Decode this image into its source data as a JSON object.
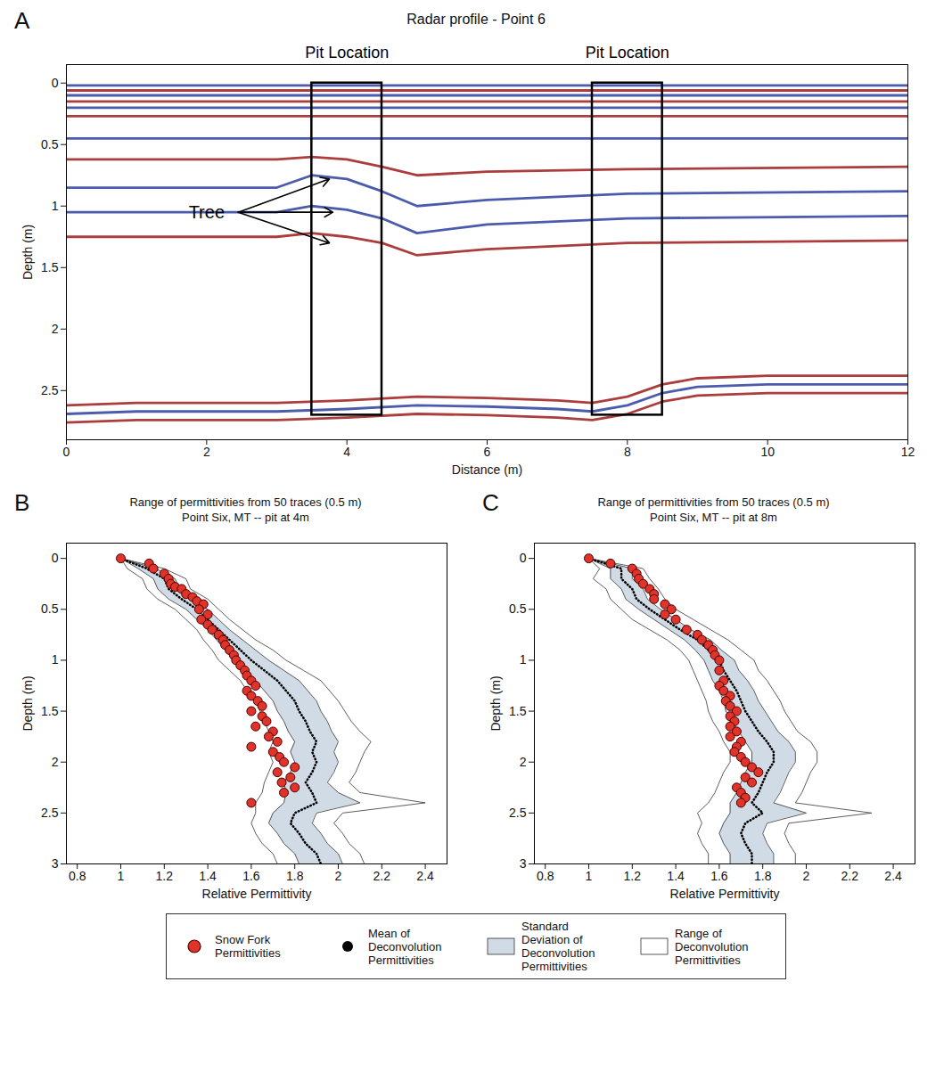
{
  "chart_data": [
    {
      "panel": "A",
      "type": "line",
      "title": "Radar profile - Point 6",
      "xlabel": "Distance (m)",
      "ylabel": "Depth (m)",
      "xlim": [
        0,
        12
      ],
      "xticks": [
        0,
        2,
        4,
        6,
        8,
        10,
        12
      ],
      "ylim": [
        -0.15,
        2.9
      ],
      "yticks": [
        0,
        0.5,
        1,
        1.5,
        2,
        2.5
      ],
      "series": [
        {
          "type": "line",
          "color": "#2b3f9e",
          "x": [
            0,
            12
          ],
          "depth": [
            0.02,
            0.02
          ]
        },
        {
          "type": "line",
          "color": "#9e1b1b",
          "x": [
            0,
            12
          ],
          "depth": [
            0.06,
            0.06
          ]
        },
        {
          "type": "line",
          "color": "#2b3f9e",
          "x": [
            0,
            12
          ],
          "depth": [
            0.1,
            0.1
          ]
        },
        {
          "type": "line",
          "color": "#9e1b1b",
          "x": [
            0,
            12
          ],
          "depth": [
            0.15,
            0.15
          ]
        },
        {
          "type": "line",
          "color": "#2b3f9e",
          "x": [
            0,
            12
          ],
          "depth": [
            0.2,
            0.2
          ]
        },
        {
          "type": "line",
          "color": "#9e1b1b",
          "x": [
            0,
            12
          ],
          "depth": [
            0.27,
            0.27
          ]
        },
        {
          "type": "line",
          "color": "#2b3f9e",
          "x": [
            0,
            12
          ],
          "depth": [
            0.45,
            0.45
          ]
        },
        {
          "type": "line",
          "color": "#9e1b1b",
          "x": [
            0,
            3,
            3.5,
            4,
            4.5,
            5,
            6,
            8,
            12
          ],
          "depth": [
            0.62,
            0.62,
            0.6,
            0.62,
            0.68,
            0.75,
            0.72,
            0.7,
            0.68
          ]
        },
        {
          "type": "line",
          "color": "#2b3f9e",
          "x": [
            0,
            3,
            3.5,
            4,
            4.5,
            5,
            6,
            8,
            12
          ],
          "depth": [
            0.85,
            0.85,
            0.75,
            0.78,
            0.88,
            1.0,
            0.95,
            0.9,
            0.88
          ]
        },
        {
          "type": "line",
          "color": "#2b3f9e",
          "x": [
            0,
            3,
            3.5,
            4,
            4.5,
            5,
            6,
            8,
            12
          ],
          "depth": [
            1.05,
            1.05,
            1.0,
            1.03,
            1.1,
            1.22,
            1.15,
            1.1,
            1.08
          ]
        },
        {
          "type": "line",
          "color": "#9e1b1b",
          "x": [
            0,
            3,
            3.5,
            4,
            4.5,
            5,
            6,
            8,
            12
          ],
          "depth": [
            1.25,
            1.25,
            1.22,
            1.25,
            1.3,
            1.4,
            1.35,
            1.3,
            1.28
          ]
        },
        {
          "type": "line",
          "color": "#9e1b1b",
          "x": [
            0,
            1,
            2,
            3,
            4,
            5,
            6,
            7,
            7.5,
            8,
            8.5,
            9,
            10,
            11,
            12
          ],
          "depth": [
            2.62,
            2.6,
            2.6,
            2.6,
            2.58,
            2.55,
            2.56,
            2.58,
            2.6,
            2.55,
            2.45,
            2.4,
            2.38,
            2.38,
            2.38
          ]
        },
        {
          "type": "line",
          "color": "#2b3f9e",
          "x": [
            0,
            1,
            2,
            3,
            4,
            5,
            6,
            7,
            7.5,
            8,
            8.5,
            9,
            10,
            11,
            12
          ],
          "depth": [
            2.69,
            2.67,
            2.67,
            2.67,
            2.65,
            2.62,
            2.63,
            2.65,
            2.67,
            2.62,
            2.52,
            2.47,
            2.45,
            2.45,
            2.45
          ]
        },
        {
          "type": "line",
          "color": "#9e1b1b",
          "x": [
            0,
            1,
            2,
            3,
            4,
            5,
            6,
            7,
            7.5,
            8,
            8.5,
            9,
            10,
            11,
            12
          ],
          "depth": [
            2.76,
            2.74,
            2.74,
            2.74,
            2.72,
            2.69,
            2.7,
            2.72,
            2.74,
            2.69,
            2.59,
            2.54,
            2.52,
            2.52,
            2.52
          ]
        }
      ],
      "boxes": [
        {
          "label": "Pit Location",
          "x": [
            3.5,
            4.5
          ],
          "depth": [
            0,
            2.7
          ]
        },
        {
          "label": "Pit Location",
          "x": [
            7.5,
            8.5
          ],
          "depth": [
            0,
            2.7
          ]
        }
      ],
      "arrows": {
        "label": "Tree",
        "x": 2.0,
        "depth": 1.05,
        "from": [
          2.45,
          1.05
        ],
        "targets": [
          [
            3.75,
            0.78
          ],
          [
            3.8,
            1.05
          ],
          [
            3.75,
            1.3
          ]
        ]
      }
    },
    {
      "panel": "B",
      "type": "line",
      "title": "Range of permittivities from 50 traces (0.5 m)",
      "subtitle": "Point Six, MT -- pit at 4m",
      "xlabel": "Relative Permittivity",
      "ylabel": "Depth (m)",
      "xlim": [
        0.75,
        2.5
      ],
      "xticks": [
        0.8,
        1,
        1.2,
        1.4,
        1.6,
        1.8,
        2,
        2.2,
        2.4
      ],
      "ylim": [
        -0.15,
        3
      ],
      "yticks": [
        0,
        0.5,
        1,
        1.5,
        2,
        2.5,
        3
      ],
      "legend": "bottom",
      "depth": [
        0,
        0.1,
        0.2,
        0.3,
        0.4,
        0.5,
        0.6,
        0.7,
        0.8,
        0.9,
        1.0,
        1.1,
        1.2,
        1.3,
        1.4,
        1.5,
        1.6,
        1.7,
        1.8,
        1.9,
        2.0,
        2.1,
        2.2,
        2.3,
        2.4,
        2.5,
        2.6,
        2.7,
        2.8,
        2.9,
        3.0
      ],
      "series": [
        {
          "name": "Range of Deconvolution Permittivities",
          "type": "area",
          "color": "#ffffff",
          "lower": [
            1.0,
            1.03,
            1.1,
            1.12,
            1.17,
            1.25,
            1.3,
            1.35,
            1.38,
            1.42,
            1.45,
            1.5,
            1.55,
            1.58,
            1.62,
            1.64,
            1.66,
            1.68,
            1.7,
            1.68,
            1.7,
            1.68,
            1.66,
            1.65,
            1.62,
            1.62,
            1.6,
            1.62,
            1.65,
            1.7,
            1.72
          ],
          "upper": [
            1.0,
            1.2,
            1.3,
            1.32,
            1.4,
            1.45,
            1.5,
            1.56,
            1.62,
            1.7,
            1.76,
            1.84,
            1.92,
            1.96,
            2.0,
            2.03,
            2.06,
            2.1,
            2.15,
            2.12,
            2.1,
            2.08,
            2.05,
            2.1,
            2.4,
            2.02,
            1.98,
            2.02,
            2.05,
            2.1,
            2.12
          ]
        },
        {
          "name": "Standard Deviation of Deconvolution Permittivities",
          "type": "area",
          "color": "#d0dbe5",
          "lower": [
            1.0,
            1.08,
            1.15,
            1.17,
            1.22,
            1.3,
            1.35,
            1.4,
            1.44,
            1.48,
            1.52,
            1.57,
            1.62,
            1.66,
            1.7,
            1.72,
            1.75,
            1.77,
            1.8,
            1.78,
            1.8,
            1.78,
            1.75,
            1.76,
            1.75,
            1.7,
            1.68,
            1.72,
            1.75,
            1.8,
            1.82
          ],
          "upper": [
            1.0,
            1.16,
            1.25,
            1.27,
            1.34,
            1.4,
            1.45,
            1.5,
            1.56,
            1.62,
            1.68,
            1.75,
            1.82,
            1.86,
            1.9,
            1.92,
            1.95,
            1.97,
            2.0,
            1.98,
            2.0,
            1.98,
            1.95,
            2.0,
            2.1,
            1.9,
            1.88,
            1.92,
            1.95,
            2.0,
            2.02
          ]
        },
        {
          "name": "Mean of Deconvolution Permittivities",
          "type": "line",
          "line_style": "dotted",
          "color": "#000000",
          "values": [
            1.0,
            1.12,
            1.2,
            1.22,
            1.28,
            1.35,
            1.4,
            1.45,
            1.5,
            1.55,
            1.6,
            1.66,
            1.72,
            1.76,
            1.8,
            1.82,
            1.85,
            1.87,
            1.9,
            1.88,
            1.9,
            1.88,
            1.85,
            1.88,
            1.9,
            1.8,
            1.78,
            1.82,
            1.85,
            1.9,
            1.92
          ]
        },
        {
          "name": "Snow Fork Permittivities",
          "type": "scatter",
          "marker": "circle",
          "color": "#e0342b",
          "values": [
            1.0,
            1.13,
            1.15,
            1.2,
            1.22,
            1.23,
            1.25,
            1.28,
            1.3,
            1.33,
            1.35,
            1.38,
            1.36,
            1.4,
            1.37,
            1.4,
            1.42,
            1.45,
            1.47,
            1.48,
            1.5,
            1.52,
            1.53,
            1.55,
            1.57,
            1.58,
            1.6,
            1.62,
            1.58,
            1.6,
            1.63,
            1.65,
            1.6,
            1.65,
            1.67,
            1.62,
            1.7,
            1.68,
            1.72,
            1.6,
            1.7,
            1.73,
            1.75,
            1.8,
            1.72,
            1.78,
            1.74,
            1.8,
            1.75,
            1.6
          ],
          "depth": [
            0,
            0.05,
            0.1,
            0.15,
            0.2,
            0.25,
            0.28,
            0.3,
            0.35,
            0.38,
            0.42,
            0.45,
            0.5,
            0.55,
            0.6,
            0.65,
            0.7,
            0.75,
            0.8,
            0.85,
            0.9,
            0.95,
            1.0,
            1.05,
            1.1,
            1.15,
            1.2,
            1.25,
            1.3,
            1.35,
            1.4,
            1.45,
            1.5,
            1.55,
            1.6,
            1.65,
            1.7,
            1.75,
            1.8,
            1.85,
            1.9,
            1.95,
            2.0,
            2.05,
            2.1,
            2.15,
            2.2,
            2.25,
            2.3,
            2.4
          ]
        }
      ]
    },
    {
      "panel": "C",
      "type": "line",
      "title": "Range of permittivities from 50 traces (0.5 m)",
      "subtitle": "Point Six, MT -- pit at 8m",
      "xlabel": "Relative Permittivity",
      "ylabel": "Depth (m)",
      "xlim": [
        0.75,
        2.5
      ],
      "xticks": [
        0.8,
        1,
        1.2,
        1.4,
        1.6,
        1.8,
        2,
        2.2,
        2.4
      ],
      "ylim": [
        -0.15,
        3
      ],
      "yticks": [
        0,
        0.5,
        1,
        1.5,
        2,
        2.5,
        3
      ],
      "legend": "bottom",
      "depth": [
        0,
        0.1,
        0.2,
        0.3,
        0.4,
        0.5,
        0.6,
        0.7,
        0.8,
        0.9,
        1.0,
        1.1,
        1.2,
        1.3,
        1.4,
        1.5,
        1.6,
        1.7,
        1.8,
        1.9,
        2.0,
        2.1,
        2.2,
        2.3,
        2.4,
        2.5,
        2.6,
        2.7,
        2.8,
        2.9,
        3.0
      ],
      "series": [
        {
          "name": "Range of Deconvolution Permittivities",
          "type": "area",
          "color": "#ffffff",
          "lower": [
            1.0,
            1.05,
            1.02,
            1.08,
            1.1,
            1.15,
            1.2,
            1.28,
            1.36,
            1.42,
            1.46,
            1.48,
            1.5,
            1.52,
            1.54,
            1.55,
            1.57,
            1.6,
            1.62,
            1.65,
            1.65,
            1.62,
            1.6,
            1.58,
            1.55,
            1.5,
            1.52,
            1.5,
            1.52,
            1.55,
            1.55
          ],
          "upper": [
            1.0,
            1.25,
            1.28,
            1.32,
            1.35,
            1.4,
            1.48,
            1.56,
            1.64,
            1.7,
            1.76,
            1.78,
            1.82,
            1.85,
            1.88,
            1.9,
            1.93,
            1.96,
            2.02,
            2.05,
            2.05,
            2.02,
            2.0,
            1.98,
            1.95,
            2.3,
            1.92,
            1.9,
            1.92,
            1.95,
            1.95
          ]
        },
        {
          "name": "Standard Deviation of Deconvolution Permittivities",
          "type": "area",
          "color": "#d0dbe5",
          "lower": [
            1.0,
            1.1,
            1.1,
            1.15,
            1.17,
            1.23,
            1.3,
            1.37,
            1.44,
            1.49,
            1.53,
            1.55,
            1.57,
            1.6,
            1.62,
            1.63,
            1.66,
            1.69,
            1.72,
            1.75,
            1.75,
            1.72,
            1.7,
            1.68,
            1.65,
            1.65,
            1.62,
            1.6,
            1.62,
            1.65,
            1.65
          ],
          "upper": [
            1.0,
            1.2,
            1.2,
            1.25,
            1.27,
            1.33,
            1.4,
            1.47,
            1.56,
            1.61,
            1.67,
            1.69,
            1.73,
            1.76,
            1.78,
            1.81,
            1.84,
            1.87,
            1.92,
            1.95,
            1.95,
            1.92,
            1.9,
            1.88,
            1.85,
            2.0,
            1.82,
            1.8,
            1.82,
            1.85,
            1.85
          ]
        },
        {
          "name": "Mean of Deconvolution Permittivities",
          "type": "line",
          "line_style": "dotted",
          "color": "#000000",
          "values": [
            1.0,
            1.15,
            1.15,
            1.2,
            1.22,
            1.28,
            1.35,
            1.42,
            1.5,
            1.55,
            1.6,
            1.62,
            1.65,
            1.68,
            1.7,
            1.72,
            1.75,
            1.78,
            1.82,
            1.85,
            1.85,
            1.82,
            1.8,
            1.78,
            1.75,
            1.8,
            1.72,
            1.7,
            1.72,
            1.75,
            1.75
          ]
        },
        {
          "name": "Snow Fork Permittivities",
          "type": "scatter",
          "marker": "circle",
          "color": "#e0342b",
          "values": [
            1.0,
            1.1,
            1.2,
            1.22,
            1.23,
            1.25,
            1.28,
            1.3,
            1.3,
            1.35,
            1.38,
            1.35,
            1.4,
            1.45,
            1.5,
            1.52,
            1.55,
            1.57,
            1.58,
            1.6,
            1.6,
            1.62,
            1.6,
            1.62,
            1.65,
            1.63,
            1.65,
            1.68,
            1.65,
            1.67,
            1.65,
            1.68,
            1.65,
            1.7,
            1.68,
            1.67,
            1.7,
            1.72,
            1.75,
            1.78,
            1.72,
            1.75,
            1.68,
            1.7,
            1.72,
            1.7
          ],
          "depth": [
            0,
            0.05,
            0.1,
            0.15,
            0.2,
            0.25,
            0.3,
            0.35,
            0.4,
            0.45,
            0.5,
            0.55,
            0.6,
            0.7,
            0.75,
            0.8,
            0.85,
            0.9,
            0.95,
            1.0,
            1.1,
            1.2,
            1.25,
            1.3,
            1.35,
            1.4,
            1.45,
            1.5,
            1.55,
            1.6,
            1.65,
            1.7,
            1.75,
            1.8,
            1.85,
            1.9,
            1.95,
            2.0,
            2.05,
            2.1,
            2.15,
            2.2,
            2.25,
            2.3,
            2.35,
            2.4
          ]
        }
      ]
    }
  ]
}
